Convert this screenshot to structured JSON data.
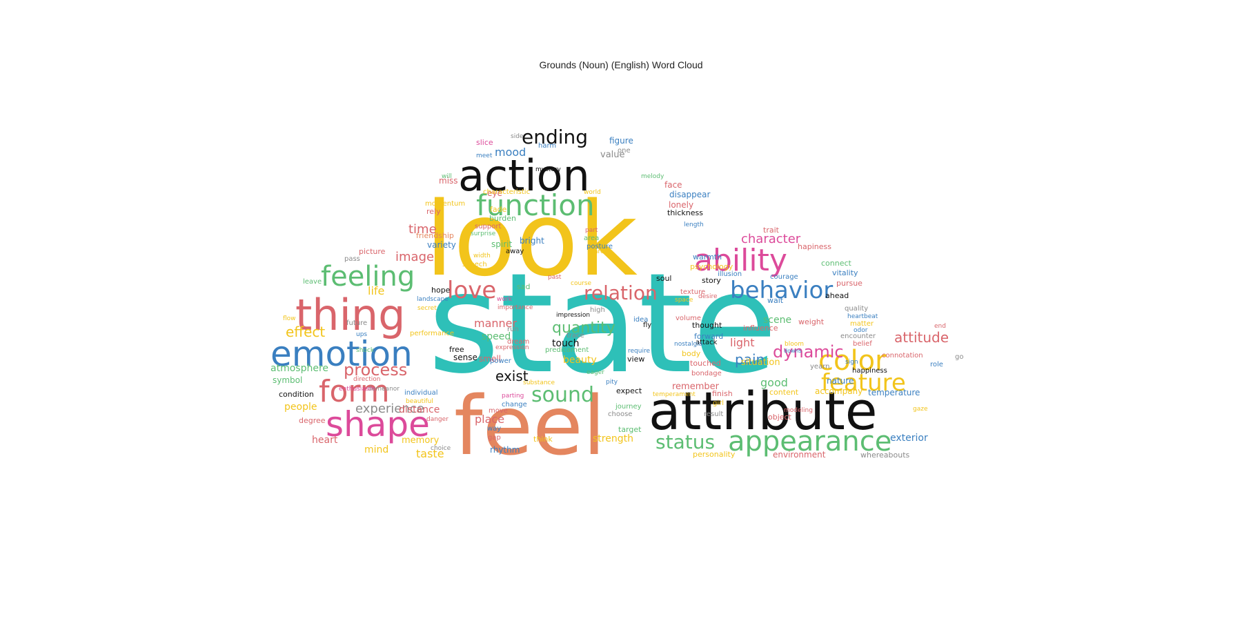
{
  "chart_data": {
    "type": "wordcloud",
    "title": "Grounds (Noun) (English) Word Cloud",
    "colors": {
      "black": "#111111",
      "yellow": "#f2c41b",
      "teal": "#2ec0b8",
      "salmon": "#e4865f",
      "blue": "#3a7fc0",
      "red": "#d9656b",
      "green": "#5cbd72",
      "pink": "#dc4a9a",
      "gray": "#8a8a8a"
    },
    "words": [
      {
        "text": "state",
        "color": "teal"
      },
      {
        "text": "look",
        "color": "yellow"
      },
      {
        "text": "feel",
        "color": "salmon"
      },
      {
        "text": "attribute",
        "color": "black"
      },
      {
        "text": "action",
        "color": "black"
      },
      {
        "text": "function",
        "color": "green"
      },
      {
        "text": "thing",
        "color": "red"
      },
      {
        "text": "emotion",
        "color": "blue"
      },
      {
        "text": "ability",
        "color": "pink"
      },
      {
        "text": "appearance",
        "color": "green"
      },
      {
        "text": "shape",
        "color": "pink"
      },
      {
        "text": "form",
        "color": "red"
      },
      {
        "text": "feeling",
        "color": "green"
      },
      {
        "text": "color",
        "color": "yellow"
      },
      {
        "text": "behavior",
        "color": "blue"
      },
      {
        "text": "feature",
        "color": "yellow"
      },
      {
        "text": "love",
        "color": "red"
      },
      {
        "text": "relation",
        "color": "red"
      },
      {
        "text": "ending",
        "color": "black"
      },
      {
        "text": "process",
        "color": "red"
      },
      {
        "text": "sound",
        "color": "green"
      },
      {
        "text": "status",
        "color": "green"
      },
      {
        "text": "dynamic",
        "color": "pink"
      },
      {
        "text": "quantity",
        "color": "green"
      },
      {
        "text": "effect",
        "color": "yellow"
      },
      {
        "text": "attitude",
        "color": "red"
      },
      {
        "text": "exist",
        "color": "black"
      },
      {
        "text": "experience",
        "color": "gray"
      },
      {
        "text": "character",
        "color": "pink"
      },
      {
        "text": "time",
        "color": "red"
      },
      {
        "text": "image",
        "color": "red"
      },
      {
        "text": "mood",
        "color": "blue"
      },
      {
        "text": "manner",
        "color": "red"
      },
      {
        "text": "pain",
        "color": "blue"
      },
      {
        "text": "life",
        "color": "yellow"
      },
      {
        "text": "atmosphere",
        "color": "green"
      },
      {
        "text": "light",
        "color": "red"
      },
      {
        "text": "good",
        "color": "green"
      },
      {
        "text": "scene",
        "color": "green"
      },
      {
        "text": "place",
        "color": "red"
      },
      {
        "text": "distance",
        "color": "red"
      },
      {
        "text": "taste",
        "color": "yellow"
      },
      {
        "text": "people",
        "color": "yellow"
      },
      {
        "text": "beauty",
        "color": "yellow"
      },
      {
        "text": "speed",
        "color": "green"
      },
      {
        "text": "touch",
        "color": "black"
      },
      {
        "text": "sense",
        "color": "black"
      },
      {
        "text": "free",
        "color": "black"
      },
      {
        "text": "smell",
        "color": "red"
      },
      {
        "text": "heart",
        "color": "red"
      },
      {
        "text": "memory",
        "color": "yellow"
      },
      {
        "text": "mind",
        "color": "yellow"
      },
      {
        "text": "symbol",
        "color": "green"
      },
      {
        "text": "condition",
        "color": "black"
      },
      {
        "text": "degree",
        "color": "red"
      },
      {
        "text": "nature",
        "color": "blue"
      },
      {
        "text": "accompany",
        "color": "yellow"
      },
      {
        "text": "temperature",
        "color": "blue"
      },
      {
        "text": "exterior",
        "color": "blue"
      },
      {
        "text": "environment",
        "color": "red"
      },
      {
        "text": "whereabouts",
        "color": "gray"
      },
      {
        "text": "strength",
        "color": "yellow"
      },
      {
        "text": "situation",
        "color": "yellow"
      },
      {
        "text": "remember",
        "color": "red"
      },
      {
        "text": "expect",
        "color": "black"
      },
      {
        "text": "view",
        "color": "black"
      },
      {
        "text": "rhythm",
        "color": "blue"
      },
      {
        "text": "target",
        "color": "green"
      },
      {
        "text": "personality",
        "color": "yellow"
      },
      {
        "text": "variety",
        "color": "blue"
      },
      {
        "text": "spirit",
        "color": "green"
      },
      {
        "text": "bright",
        "color": "blue"
      },
      {
        "text": "burden",
        "color": "green"
      },
      {
        "text": "lonely",
        "color": "red"
      },
      {
        "text": "face",
        "color": "red"
      },
      {
        "text": "miss",
        "color": "red"
      },
      {
        "text": "value",
        "color": "gray"
      },
      {
        "text": "figure",
        "color": "blue"
      },
      {
        "text": "friendship",
        "color": "salmon"
      },
      {
        "text": "rely",
        "color": "red"
      },
      {
        "text": "momentum",
        "color": "yellow"
      },
      {
        "text": "fade",
        "color": "yellow"
      },
      {
        "text": "eye",
        "color": "red"
      },
      {
        "text": "thickness",
        "color": "black"
      },
      {
        "text": "disappear",
        "color": "blue"
      },
      {
        "text": "warmth",
        "color": "blue"
      },
      {
        "text": "psychology",
        "color": "yellow"
      },
      {
        "text": "hope",
        "color": "black"
      },
      {
        "text": "sad",
        "color": "green"
      },
      {
        "text": "soul",
        "color": "black"
      },
      {
        "text": "story",
        "color": "black"
      },
      {
        "text": "ahead",
        "color": "black"
      },
      {
        "text": "thought",
        "color": "black"
      },
      {
        "text": "influence",
        "color": "red"
      },
      {
        "text": "forward",
        "color": "blue"
      },
      {
        "text": "body",
        "color": "yellow"
      },
      {
        "text": "touched",
        "color": "red"
      },
      {
        "text": "bondage",
        "color": "red"
      },
      {
        "text": "finish",
        "color": "red"
      },
      {
        "text": "content",
        "color": "yellow"
      },
      {
        "text": "result",
        "color": "gray"
      },
      {
        "text": "object",
        "color": "red"
      },
      {
        "text": "choose",
        "color": "gray"
      },
      {
        "text": "journey",
        "color": "green"
      },
      {
        "text": "way",
        "color": "blue"
      },
      {
        "text": "gap",
        "color": "red"
      },
      {
        "text": "think",
        "color": "yellow"
      },
      {
        "text": "move",
        "color": "red"
      },
      {
        "text": "individual",
        "color": "blue"
      },
      {
        "text": "performance",
        "color": "yellow"
      },
      {
        "text": "future",
        "color": "gray"
      },
      {
        "text": "flow",
        "color": "yellow"
      },
      {
        "text": "picture",
        "color": "red"
      },
      {
        "text": "pass",
        "color": "gray"
      },
      {
        "text": "leave",
        "color": "green"
      },
      {
        "text": "speech",
        "color": "yellow"
      },
      {
        "text": "width",
        "color": "yellow"
      },
      {
        "text": "support",
        "color": "red"
      },
      {
        "text": "surprise",
        "color": "green"
      },
      {
        "text": "away",
        "color": "black"
      },
      {
        "text": "posture",
        "color": "blue"
      },
      {
        "text": "care",
        "color": "yellow"
      },
      {
        "text": "area",
        "color": "green"
      },
      {
        "text": "part",
        "color": "red"
      },
      {
        "text": "length",
        "color": "blue"
      },
      {
        "text": "trait",
        "color": "red"
      },
      {
        "text": "hapiness",
        "color": "red"
      },
      {
        "text": "connect",
        "color": "green"
      },
      {
        "text": "vitality",
        "color": "blue"
      },
      {
        "text": "courage",
        "color": "blue"
      },
      {
        "text": "pursue",
        "color": "red"
      },
      {
        "text": "quality",
        "color": "gray"
      },
      {
        "text": "heartbeat",
        "color": "blue"
      },
      {
        "text": "matter",
        "color": "yellow"
      },
      {
        "text": "weight",
        "color": "red"
      },
      {
        "text": "encounter",
        "color": "gray"
      },
      {
        "text": "belief",
        "color": "red"
      },
      {
        "text": "connotation",
        "color": "red"
      },
      {
        "text": "happiness",
        "color": "black"
      },
      {
        "text": "role",
        "color": "blue"
      },
      {
        "text": "yearn",
        "color": "gray"
      },
      {
        "text": "sign",
        "color": "blue"
      },
      {
        "text": "wait",
        "color": "blue"
      },
      {
        "text": "illusion",
        "color": "blue"
      },
      {
        "text": "texture",
        "color": "red"
      },
      {
        "text": "desire",
        "color": "red"
      },
      {
        "text": "space",
        "color": "yellow"
      },
      {
        "text": "volume",
        "color": "red"
      },
      {
        "text": "attack",
        "color": "black"
      },
      {
        "text": "girl",
        "color": "yellow"
      },
      {
        "text": "modeling",
        "color": "red"
      },
      {
        "text": "temperament",
        "color": "yellow"
      },
      {
        "text": "nostalgia",
        "color": "blue"
      },
      {
        "text": "require",
        "color": "blue"
      },
      {
        "text": "pity",
        "color": "blue"
      },
      {
        "text": "eager",
        "color": "green"
      },
      {
        "text": "idea",
        "color": "blue"
      },
      {
        "text": "fly",
        "color": "black"
      },
      {
        "text": "high",
        "color": "gray"
      },
      {
        "text": "impression",
        "color": "black"
      },
      {
        "text": "trace",
        "color": "gray"
      },
      {
        "text": "predicament",
        "color": "green"
      },
      {
        "text": "course",
        "color": "yellow"
      },
      {
        "text": "past",
        "color": "red"
      },
      {
        "text": "work",
        "color": "pink"
      },
      {
        "text": "importance",
        "color": "red"
      },
      {
        "text": "expression",
        "color": "red"
      },
      {
        "text": "power",
        "color": "blue"
      },
      {
        "text": "dream",
        "color": "red"
      },
      {
        "text": "change",
        "color": "blue"
      },
      {
        "text": "substance",
        "color": "yellow"
      },
      {
        "text": "parting",
        "color": "pink"
      },
      {
        "text": "direction",
        "color": "red"
      },
      {
        "text": "demeanor",
        "color": "gray"
      },
      {
        "text": "beautiful",
        "color": "yellow"
      },
      {
        "text": "danger",
        "color": "red"
      },
      {
        "text": "choice",
        "color": "gray"
      },
      {
        "text": "shock",
        "color": "green"
      },
      {
        "text": "ups",
        "color": "blue"
      },
      {
        "text": "enthusiasm",
        "color": "pink"
      },
      {
        "text": "landscape",
        "color": "blue"
      },
      {
        "text": "secret",
        "color": "yellow"
      },
      {
        "text": "slice",
        "color": "pink"
      },
      {
        "text": "side",
        "color": "gray"
      },
      {
        "text": "meet",
        "color": "blue"
      },
      {
        "text": "will",
        "color": "green"
      },
      {
        "text": "mystery",
        "color": "black"
      },
      {
        "text": "harm",
        "color": "blue"
      },
      {
        "text": "one",
        "color": "gray"
      },
      {
        "text": "melody",
        "color": "green"
      },
      {
        "text": "characteristic",
        "color": "yellow"
      },
      {
        "text": "world",
        "color": "yellow"
      },
      {
        "text": "odor",
        "color": "blue"
      },
      {
        "text": "end",
        "color": "red"
      },
      {
        "text": "go",
        "color": "gray"
      },
      {
        "text": "bloom",
        "color": "yellow"
      },
      {
        "text": "downs",
        "color": "blue"
      },
      {
        "text": "run",
        "color": "gray"
      },
      {
        "text": "gaze",
        "color": "yellow"
      }
    ]
  }
}
